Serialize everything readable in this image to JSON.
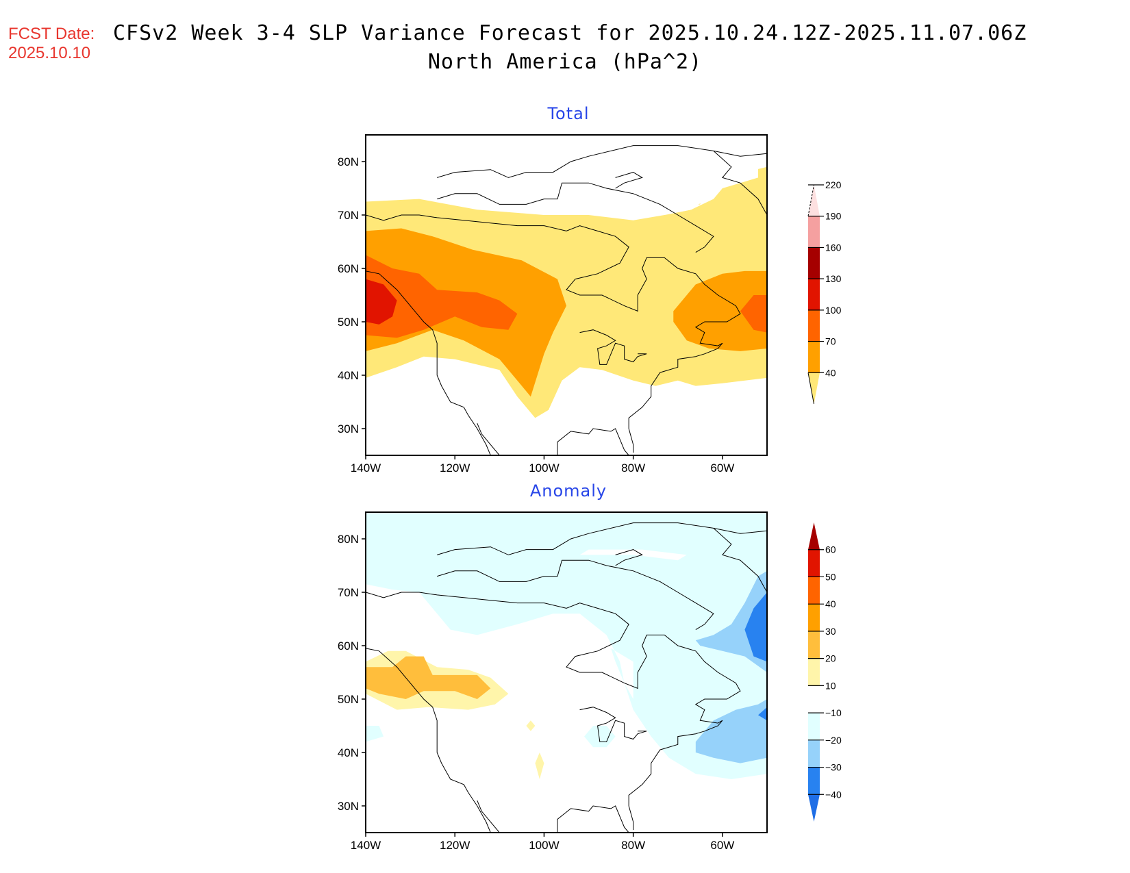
{
  "header": {
    "fcst_label": "FCST Date:",
    "fcst_date": "2025.10.10",
    "title_line1": "CFSv2 Week 3-4 SLP Variance Forecast for 2025.10.24.12Z-2025.11.07.06Z",
    "title_line2": "North America (hPa^2)"
  },
  "chart_data": [
    {
      "type": "heatmap",
      "title": "Total",
      "xlabel": "",
      "ylabel": "",
      "xlim": [
        -140,
        -50
      ],
      "ylim": [
        25,
        85
      ],
      "x_ticks": [
        -140,
        -120,
        -100,
        -80,
        -60
      ],
      "x_tick_labels": [
        "140W",
        "120W",
        "100W",
        "80W",
        "60W"
      ],
      "y_ticks": [
        30,
        40,
        50,
        60,
        70,
        80
      ],
      "y_tick_labels": [
        "30N",
        "40N",
        "50N",
        "60N",
        "70N",
        "80N"
      ],
      "colorbar": {
        "levels": [
          40,
          70,
          100,
          130,
          160,
          190,
          220
        ],
        "level_labels": [
          "40",
          "70",
          "100",
          "130",
          "160",
          "190",
          "220"
        ],
        "colors": [
          "#ffe878",
          "#ffa000",
          "#ff6400",
          "#e11400",
          "#a50000",
          "#f5a0a0",
          "#fde0e0"
        ],
        "placement": "right"
      },
      "regions": [
        {
          "level": 40,
          "color": "#ffe878",
          "desc": "broad band 35N-73N across continent, plus NE Canada/Greenland"
        },
        {
          "level": 70,
          "color": "#ffa000",
          "desc": "W Canada 45N-67N extending to 36N at 102W; Atlantic Canada 44N-60N"
        },
        {
          "level": 100,
          "color": "#ff6400",
          "desc": "NE Pacific / BC coast through Saskatchewan 47N-63N; Newfoundland area"
        },
        {
          "level": 130,
          "color": "#e11400",
          "desc": "NE Pacific off BC 50N-58N, 140W-132W"
        }
      ]
    },
    {
      "type": "heatmap",
      "title": "Anomaly",
      "xlabel": "",
      "ylabel": "",
      "xlim": [
        -140,
        -50
      ],
      "ylim": [
        25,
        85
      ],
      "x_ticks": [
        -140,
        -120,
        -100,
        -80,
        -60
      ],
      "x_tick_labels": [
        "140W",
        "120W",
        "100W",
        "80W",
        "60W"
      ],
      "y_ticks": [
        30,
        40,
        50,
        60,
        70,
        80
      ],
      "y_tick_labels": [
        "30N",
        "40N",
        "50N",
        "60N",
        "70N",
        "80N"
      ],
      "colorbar": {
        "levels": [
          -40,
          -30,
          -20,
          -10,
          10,
          20,
          30,
          40,
          50,
          60
        ],
        "level_labels": [
          "-40",
          "-30",
          "-20",
          "-10",
          "10",
          "20",
          "30",
          "40",
          "50",
          "60"
        ],
        "colors": [
          "#1e6ee6",
          "#2882f0",
          "#96d2fa",
          "#e1ffff",
          "#ffffff",
          "#fff5aa",
          "#ffbe3c",
          "#ffa000",
          "#ff6400",
          "#e11400",
          "#a50000"
        ],
        "placement": "right"
      },
      "regions": [
        {
          "level": -10,
          "color": "#e1ffff",
          "desc": "Arctic archipelago north of ~63N; E Canada / NW Atlantic east of ~85W"
        },
        {
          "level": -20,
          "color": "#96d2fa",
          "desc": "Labrador Sea / Davis Strait and off Nova Scotia"
        },
        {
          "level": -30,
          "color": "#2882f0",
          "desc": "Labrador Sea 57N-68N near 52W"
        },
        {
          "level": 10,
          "color": "#fff5aa",
          "desc": "NE Pacific to Saskatchewan 48N-59N"
        },
        {
          "level": 20,
          "color": "#ffbe3c",
          "desc": "BC coast to Alberta 50N-58N"
        }
      ]
    }
  ]
}
